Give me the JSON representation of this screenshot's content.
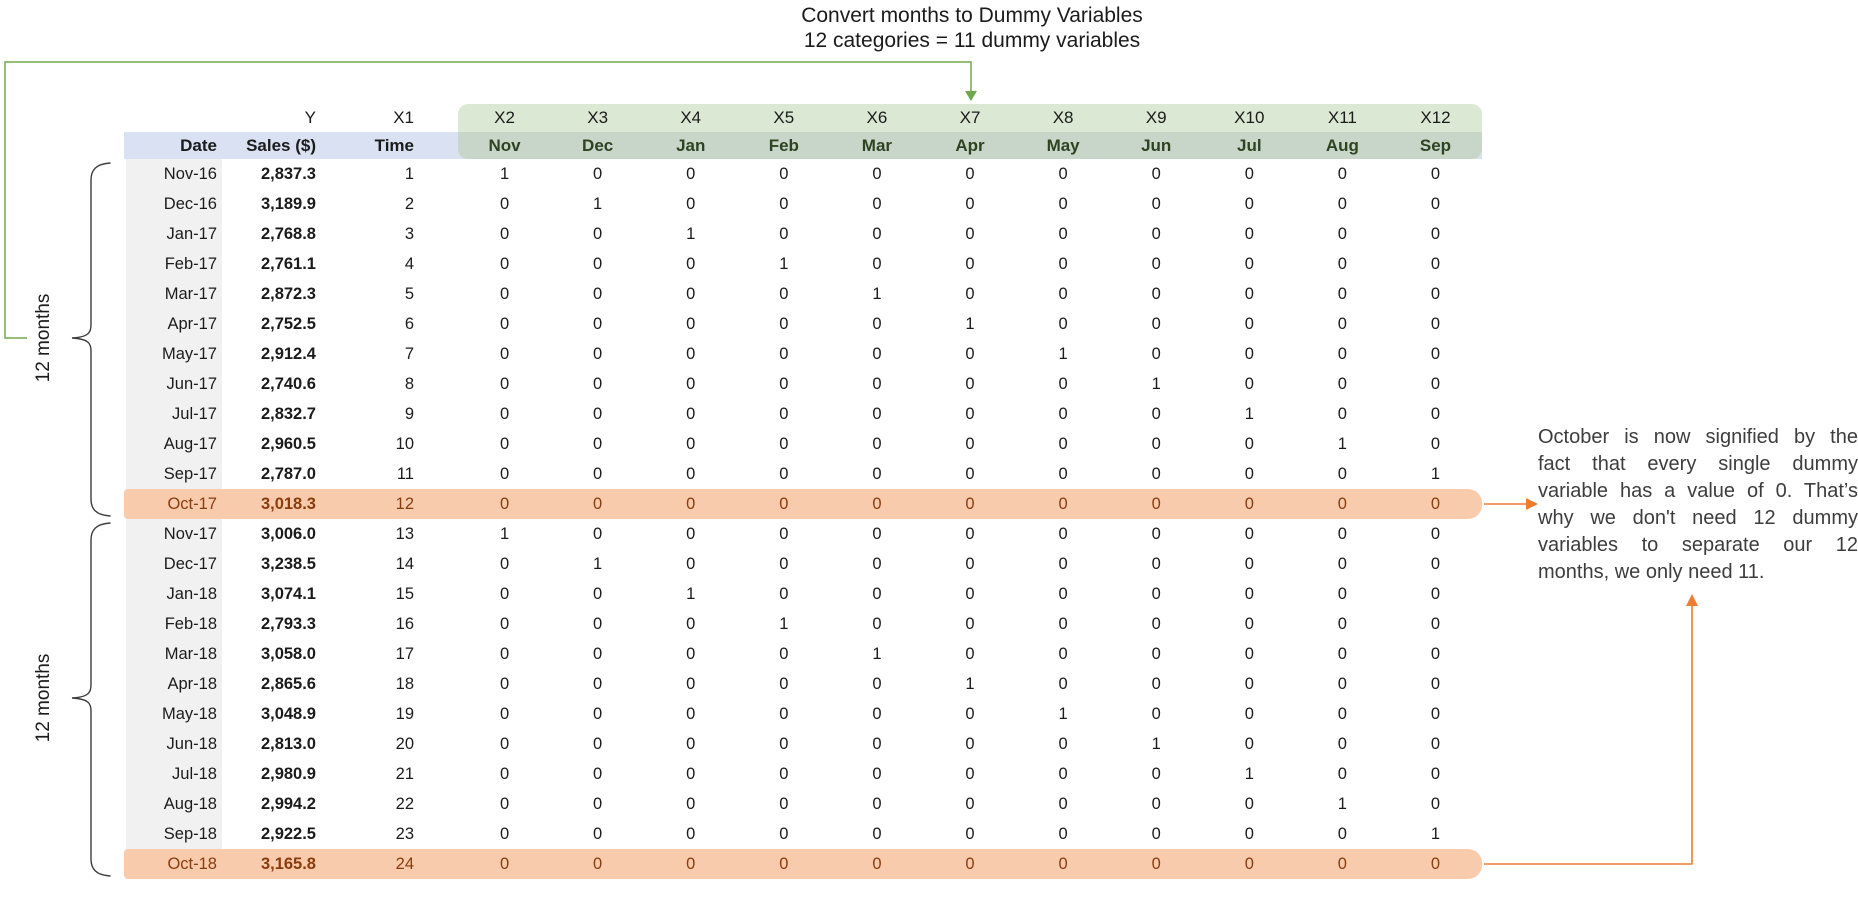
{
  "title": {
    "line1": "Convert months to Dummy Variables",
    "line2": "12 categories = 11 dummy variables"
  },
  "group_labels": {
    "top": "12 months",
    "bottom": "12 months"
  },
  "note": {
    "lines": [
      "October is now signified by the",
      "fact that every single dummy",
      "variable has a value of 0. That’s",
      "why we don't need 12 dummy",
      "variables to separate our 12",
      "months, we only need 11."
    ]
  },
  "table": {
    "var_row": {
      "y": "Y",
      "x1": "X1",
      "x": [
        "X2",
        "X3",
        "X4",
        "X5",
        "X6",
        "X7",
        "X8",
        "X9",
        "X10",
        "X11",
        "X12"
      ]
    },
    "header_row": {
      "date": "Date",
      "sales": "Sales ($)",
      "time": "Time",
      "months": [
        "Nov",
        "Dec",
        "Jan",
        "Feb",
        "Mar",
        "Apr",
        "May",
        "Jun",
        "Jul",
        "Aug",
        "Sep"
      ]
    },
    "rows": [
      {
        "date": "Nov-16",
        "sales": "2,837.3",
        "time": "1",
        "dummies": [
          1,
          0,
          0,
          0,
          0,
          0,
          0,
          0,
          0,
          0,
          0
        ],
        "highlight": false
      },
      {
        "date": "Dec-16",
        "sales": "3,189.9",
        "time": "2",
        "dummies": [
          0,
          1,
          0,
          0,
          0,
          0,
          0,
          0,
          0,
          0,
          0
        ],
        "highlight": false
      },
      {
        "date": "Jan-17",
        "sales": "2,768.8",
        "time": "3",
        "dummies": [
          0,
          0,
          1,
          0,
          0,
          0,
          0,
          0,
          0,
          0,
          0
        ],
        "highlight": false
      },
      {
        "date": "Feb-17",
        "sales": "2,761.1",
        "time": "4",
        "dummies": [
          0,
          0,
          0,
          1,
          0,
          0,
          0,
          0,
          0,
          0,
          0
        ],
        "highlight": false
      },
      {
        "date": "Mar-17",
        "sales": "2,872.3",
        "time": "5",
        "dummies": [
          0,
          0,
          0,
          0,
          1,
          0,
          0,
          0,
          0,
          0,
          0
        ],
        "highlight": false
      },
      {
        "date": "Apr-17",
        "sales": "2,752.5",
        "time": "6",
        "dummies": [
          0,
          0,
          0,
          0,
          0,
          1,
          0,
          0,
          0,
          0,
          0
        ],
        "highlight": false
      },
      {
        "date": "May-17",
        "sales": "2,912.4",
        "time": "7",
        "dummies": [
          0,
          0,
          0,
          0,
          0,
          0,
          1,
          0,
          0,
          0,
          0
        ],
        "highlight": false
      },
      {
        "date": "Jun-17",
        "sales": "2,740.6",
        "time": "8",
        "dummies": [
          0,
          0,
          0,
          0,
          0,
          0,
          0,
          1,
          0,
          0,
          0
        ],
        "highlight": false
      },
      {
        "date": "Jul-17",
        "sales": "2,832.7",
        "time": "9",
        "dummies": [
          0,
          0,
          0,
          0,
          0,
          0,
          0,
          0,
          1,
          0,
          0
        ],
        "highlight": false
      },
      {
        "date": "Aug-17",
        "sales": "2,960.5",
        "time": "10",
        "dummies": [
          0,
          0,
          0,
          0,
          0,
          0,
          0,
          0,
          0,
          1,
          0
        ],
        "highlight": false
      },
      {
        "date": "Sep-17",
        "sales": "2,787.0",
        "time": "11",
        "dummies": [
          0,
          0,
          0,
          0,
          0,
          0,
          0,
          0,
          0,
          0,
          1
        ],
        "highlight": false
      },
      {
        "date": "Oct-17",
        "sales": "3,018.3",
        "time": "12",
        "dummies": [
          0,
          0,
          0,
          0,
          0,
          0,
          0,
          0,
          0,
          0,
          0
        ],
        "highlight": true
      },
      {
        "date": "Nov-17",
        "sales": "3,006.0",
        "time": "13",
        "dummies": [
          1,
          0,
          0,
          0,
          0,
          0,
          0,
          0,
          0,
          0,
          0
        ],
        "highlight": false
      },
      {
        "date": "Dec-17",
        "sales": "3,238.5",
        "time": "14",
        "dummies": [
          0,
          1,
          0,
          0,
          0,
          0,
          0,
          0,
          0,
          0,
          0
        ],
        "highlight": false
      },
      {
        "date": "Jan-18",
        "sales": "3,074.1",
        "time": "15",
        "dummies": [
          0,
          0,
          1,
          0,
          0,
          0,
          0,
          0,
          0,
          0,
          0
        ],
        "highlight": false
      },
      {
        "date": "Feb-18",
        "sales": "2,793.3",
        "time": "16",
        "dummies": [
          0,
          0,
          0,
          1,
          0,
          0,
          0,
          0,
          0,
          0,
          0
        ],
        "highlight": false
      },
      {
        "date": "Mar-18",
        "sales": "3,058.0",
        "time": "17",
        "dummies": [
          0,
          0,
          0,
          0,
          1,
          0,
          0,
          0,
          0,
          0,
          0
        ],
        "highlight": false
      },
      {
        "date": "Apr-18",
        "sales": "2,865.6",
        "time": "18",
        "dummies": [
          0,
          0,
          0,
          0,
          0,
          1,
          0,
          0,
          0,
          0,
          0
        ],
        "highlight": false
      },
      {
        "date": "May-18",
        "sales": "3,048.9",
        "time": "19",
        "dummies": [
          0,
          0,
          0,
          0,
          0,
          0,
          1,
          0,
          0,
          0,
          0
        ],
        "highlight": false
      },
      {
        "date": "Jun-18",
        "sales": "2,813.0",
        "time": "20",
        "dummies": [
          0,
          0,
          0,
          0,
          0,
          0,
          0,
          1,
          0,
          0,
          0
        ],
        "highlight": false
      },
      {
        "date": "Jul-18",
        "sales": "2,980.9",
        "time": "21",
        "dummies": [
          0,
          0,
          0,
          0,
          0,
          0,
          0,
          0,
          1,
          0,
          0
        ],
        "highlight": false
      },
      {
        "date": "Aug-18",
        "sales": "2,994.2",
        "time": "22",
        "dummies": [
          0,
          0,
          0,
          0,
          0,
          0,
          0,
          0,
          0,
          1,
          0
        ],
        "highlight": false
      },
      {
        "date": "Sep-18",
        "sales": "2,922.5",
        "time": "23",
        "dummies": [
          0,
          0,
          0,
          0,
          0,
          0,
          0,
          0,
          0,
          0,
          1
        ],
        "highlight": false
      },
      {
        "date": "Oct-18",
        "sales": "3,165.8",
        "time": "24",
        "dummies": [
          0,
          0,
          0,
          0,
          0,
          0,
          0,
          0,
          0,
          0,
          0
        ],
        "highlight": true
      }
    ]
  },
  "colors": {
    "green_light": "#dbe9d4",
    "green_dark": "#c8d6ca",
    "lavender": "#d9e1f2",
    "gray_col": "#f1f1f1",
    "highlight": "#f8cbad",
    "highlight_text": "#8a3c0c",
    "month_text": "#2e4420",
    "green_line": "#70a84f",
    "orange_arrow": "#ed7d31",
    "text_dark": "#1b1b1b",
    "note_text": "#3d3d3d"
  }
}
